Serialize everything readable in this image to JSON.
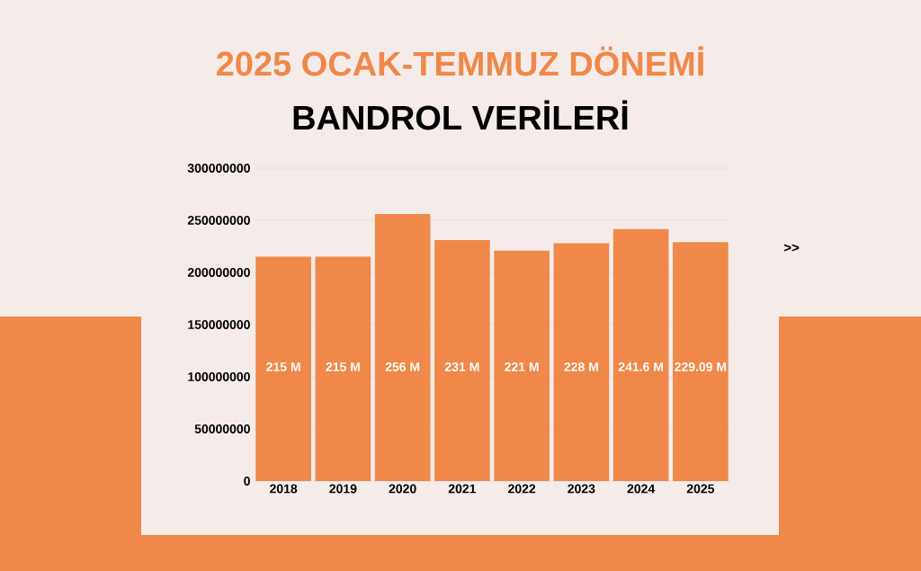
{
  "chart_data": {
    "type": "bar",
    "title": "2025 OCAK-TEMMUZ DÖNEMİ",
    "subtitle": "BANDROL VERİLERİ",
    "categories": [
      "2018",
      "2019",
      "2020",
      "2021",
      "2022",
      "2023",
      "2024",
      "2025"
    ],
    "values": [
      215000000,
      215000000,
      256000000,
      231000000,
      221000000,
      228000000,
      241600000,
      229090000
    ],
    "value_labels": [
      "215 M",
      "215 M",
      "256 M",
      "231 M",
      "221 M",
      "228 M",
      "241.6 M",
      "229.09 M"
    ],
    "color": "#ef8849",
    "ylim": [
      0,
      300000000
    ],
    "yticks": [
      0,
      50000000,
      100000000,
      150000000,
      200000000,
      250000000,
      300000000
    ],
    "grid": "y",
    "annotations": [
      ">>"
    ]
  }
}
